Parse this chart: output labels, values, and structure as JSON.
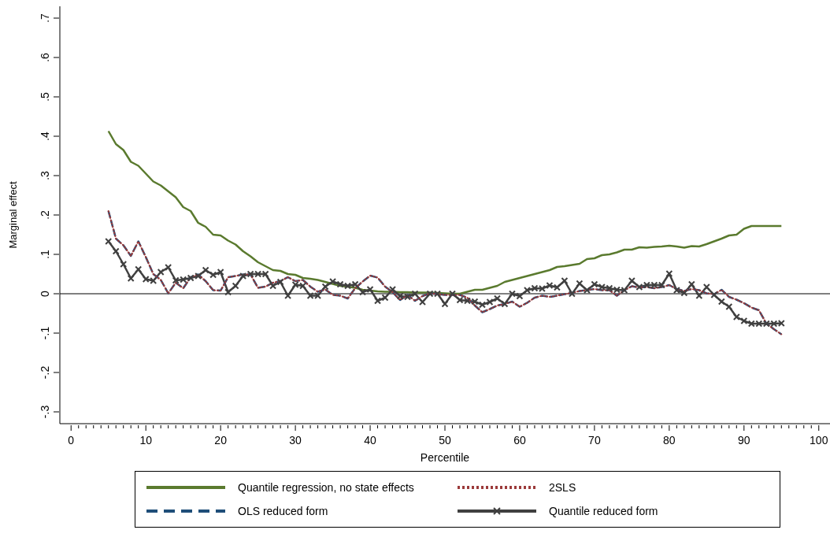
{
  "chart_data": {
    "type": "line",
    "xlabel": "Percentile",
    "ylabel": "Marginal effect",
    "x": [
      5,
      6,
      7,
      8,
      9,
      10,
      11,
      12,
      13,
      14,
      15,
      16,
      17,
      18,
      19,
      20,
      21,
      22,
      23,
      24,
      25,
      26,
      27,
      28,
      29,
      30,
      31,
      32,
      33,
      34,
      35,
      36,
      37,
      38,
      39,
      40,
      41,
      42,
      43,
      44,
      45,
      46,
      47,
      48,
      49,
      50,
      51,
      52,
      53,
      54,
      55,
      56,
      57,
      58,
      59,
      60,
      61,
      62,
      63,
      64,
      65,
      66,
      67,
      68,
      69,
      70,
      71,
      72,
      73,
      74,
      75,
      76,
      77,
      78,
      79,
      80,
      81,
      82,
      83,
      84,
      85,
      86,
      87,
      88,
      89,
      90,
      91,
      92,
      93,
      94,
      95
    ],
    "series": [
      {
        "name": "Quantile regression, no state effects",
        "color": "#5a7a2e",
        "line_style": "solid",
        "marker": "none",
        "values": [
          0.413,
          0.38,
          0.365,
          0.335,
          0.325,
          0.305,
          0.285,
          0.275,
          0.26,
          0.245,
          0.22,
          0.21,
          0.18,
          0.17,
          0.15,
          0.148,
          0.135,
          0.125,
          0.108,
          0.095,
          0.08,
          0.07,
          0.06,
          0.058,
          0.05,
          0.048,
          0.04,
          0.038,
          0.035,
          0.03,
          0.025,
          0.02,
          0.018,
          0.015,
          0.01,
          0.008,
          0.006,
          0.005,
          0.005,
          0.004,
          0.004,
          0.003,
          0.003,
          0.003,
          0.002,
          0.001,
          0,
          0,
          0.005,
          0.01,
          0.01,
          0.015,
          0.02,
          0.03,
          0.035,
          0.04,
          0.045,
          0.05,
          0.055,
          0.06,
          0.068,
          0.07,
          0.073,
          0.076,
          0.088,
          0.09,
          0.098,
          0.1,
          0.105,
          0.112,
          0.112,
          0.118,
          0.117,
          0.119,
          0.12,
          0.122,
          0.12,
          0.117,
          0.121,
          0.12,
          0.126,
          0.133,
          0.14,
          0.148,
          0.15,
          0.165,
          0.172,
          0.172,
          0.172,
          0.172,
          0.172
        ]
      },
      {
        "name": "2SLS",
        "color": "#9b3a3a",
        "line_style": "dotted",
        "marker": "none",
        "values": [
          0.21,
          0.14,
          0.123,
          0.096,
          0.133,
          0.093,
          0.05,
          0.035,
          0.001,
          0.028,
          0.014,
          0.042,
          0.049,
          0.032,
          0.009,
          0.008,
          0.042,
          0.045,
          0.049,
          0.049,
          0.015,
          0.018,
          0.028,
          0.032,
          0.042,
          0.032,
          0.035,
          0.018,
          0.005,
          0.011,
          -0.003,
          -0.005,
          -0.012,
          0.014,
          0.031,
          0.046,
          0.041,
          0.018,
          0.004,
          -0.016,
          -0.003,
          -0.018,
          -0.006,
          0.001,
          -0.001,
          -0.003,
          -0.003,
          -0.003,
          -0.01,
          -0.03,
          -0.047,
          -0.039,
          -0.03,
          -0.026,
          -0.02,
          -0.033,
          -0.023,
          -0.01,
          -0.005,
          -0.008,
          -0.005,
          -0.001,
          0.002,
          0.007,
          0.009,
          0.012,
          0.009,
          0.009,
          -0.005,
          0.009,
          0.019,
          0.016,
          0.017,
          0.014,
          0.017,
          0.022,
          0.012,
          0.007,
          0.012,
          0.009,
          0.001,
          -0.001,
          0.01,
          -0.008,
          -0.015,
          -0.024,
          -0.035,
          -0.042,
          -0.076,
          -0.09,
          -0.103
        ]
      },
      {
        "name": "OLS reduced form",
        "color": "#1f4e79",
        "line_style": "dashed",
        "marker": "none",
        "values": [
          0.21,
          0.14,
          0.123,
          0.096,
          0.133,
          0.093,
          0.05,
          0.035,
          0.001,
          0.028,
          0.014,
          0.042,
          0.049,
          0.032,
          0.009,
          0.008,
          0.042,
          0.045,
          0.049,
          0.049,
          0.015,
          0.018,
          0.028,
          0.032,
          0.042,
          0.032,
          0.035,
          0.018,
          0.005,
          0.011,
          -0.003,
          -0.005,
          -0.012,
          0.014,
          0.031,
          0.046,
          0.041,
          0.018,
          0.004,
          -0.016,
          -0.003,
          -0.018,
          -0.006,
          0.001,
          -0.001,
          -0.003,
          -0.003,
          -0.003,
          -0.01,
          -0.03,
          -0.047,
          -0.039,
          -0.03,
          -0.026,
          -0.02,
          -0.033,
          -0.023,
          -0.01,
          -0.005,
          -0.008,
          -0.005,
          -0.001,
          0.002,
          0.007,
          0.009,
          0.012,
          0.009,
          0.009,
          -0.005,
          0.009,
          0.019,
          0.016,
          0.017,
          0.014,
          0.017,
          0.022,
          0.012,
          0.007,
          0.012,
          0.009,
          0.001,
          -0.001,
          0.01,
          -0.008,
          -0.015,
          -0.024,
          -0.035,
          -0.042,
          -0.076,
          -0.09,
          -0.103
        ]
      },
      {
        "name": "Quantile reduced form",
        "color": "#404040",
        "line_style": "solid",
        "marker": "cross",
        "values": [
          0.133,
          0.108,
          0.075,
          0.039,
          0.062,
          0.037,
          0.033,
          0.055,
          0.067,
          0.034,
          0.036,
          0.04,
          0.045,
          0.06,
          0.048,
          0.055,
          0.004,
          0.02,
          0.045,
          0.05,
          0.05,
          0.05,
          0.02,
          0.03,
          -0.005,
          0.023,
          0.02,
          -0.005,
          -0.005,
          0.018,
          0.031,
          0.024,
          0.02,
          0.024,
          0.004,
          0.011,
          -0.018,
          -0.01,
          0.011,
          -0.006,
          -0.008,
          0,
          -0.021,
          0,
          0,
          -0.026,
          0,
          -0.016,
          -0.018,
          -0.02,
          -0.028,
          -0.021,
          -0.012,
          -0.026,
          0,
          -0.006,
          0.009,
          0.014,
          0.013,
          0.021,
          0.016,
          0.033,
          0,
          0.026,
          0.009,
          0.024,
          0.017,
          0.014,
          0.01,
          0.009,
          0.033,
          0.017,
          0.022,
          0.022,
          0.022,
          0.051,
          0.009,
          0.002,
          0.024,
          -0.005,
          0.017,
          -0.003,
          -0.02,
          -0.033,
          -0.059,
          -0.069,
          -0.076,
          -0.076,
          -0.076,
          -0.076,
          -0.075
        ]
      }
    ],
    "xlim": [
      -1.5,
      101.5
    ],
    "xticks": [
      0,
      {
        "value": 1,
        "label": null
      },
      {
        "value": 2,
        "label": null
      },
      {
        "value": 3,
        "label": null
      },
      {
        "value": 4,
        "label": null
      },
      {
        "value": 5,
        "label": null
      },
      {
        "value": 6,
        "label": null
      },
      {
        "value": 7,
        "label": null
      },
      {
        "value": 8,
        "label": null
      },
      {
        "value": 9,
        "label": null
      },
      10,
      {
        "value": 11,
        "label": null
      },
      {
        "value": 12,
        "label": null
      },
      {
        "value": 13,
        "label": null
      },
      {
        "value": 14,
        "label": null
      },
      {
        "value": 15,
        "label": null
      },
      {
        "value": 16,
        "label": null
      },
      {
        "value": 17,
        "label": null
      },
      {
        "value": 18,
        "label": null
      },
      {
        "value": 19,
        "label": null
      },
      20,
      {
        "value": 21,
        "label": null
      },
      {
        "value": 22,
        "label": null
      },
      {
        "value": 23,
        "label": null
      },
      {
        "value": 24,
        "label": null
      },
      {
        "value": 25,
        "label": null
      },
      {
        "value": 26,
        "label": null
      },
      {
        "value": 27,
        "label": null
      },
      {
        "value": 28,
        "label": null
      },
      {
        "value": 29,
        "label": null
      },
      30,
      {
        "value": 31,
        "label": null
      },
      {
        "value": 32,
        "label": null
      },
      {
        "value": 33,
        "label": null
      },
      {
        "value": 34,
        "label": null
      },
      {
        "value": 35,
        "label": null
      },
      {
        "value": 36,
        "label": null
      },
      {
        "value": 37,
        "label": null
      },
      {
        "value": 38,
        "label": null
      },
      {
        "value": 39,
        "label": null
      },
      40,
      {
        "value": 41,
        "label": null
      },
      {
        "value": 42,
        "label": null
      },
      {
        "value": 43,
        "label": null
      },
      {
        "value": 44,
        "label": null
      },
      {
        "value": 45,
        "label": null
      },
      {
        "value": 46,
        "label": null
      },
      {
        "value": 47,
        "label": null
      },
      {
        "value": 48,
        "label": null
      },
      {
        "value": 49,
        "label": null
      },
      50,
      {
        "value": 51,
        "label": null
      },
      {
        "value": 52,
        "label": null
      },
      {
        "value": 53,
        "label": null
      },
      {
        "value": 54,
        "label": null
      },
      {
        "value": 55,
        "label": null
      },
      {
        "value": 56,
        "label": null
      },
      {
        "value": 57,
        "label": null
      },
      {
        "value": 58,
        "label": null
      },
      {
        "value": 59,
        "label": null
      },
      60,
      {
        "value": 61,
        "label": null
      },
      {
        "value": 62,
        "label": null
      },
      {
        "value": 63,
        "label": null
      },
      {
        "value": 64,
        "label": null
      },
      {
        "value": 65,
        "label": null
      },
      {
        "value": 66,
        "label": null
      },
      {
        "value": 67,
        "label": null
      },
      {
        "value": 68,
        "label": null
      },
      {
        "value": 69,
        "label": null
      },
      70,
      {
        "value": 71,
        "label": null
      },
      {
        "value": 72,
        "label": null
      },
      {
        "value": 73,
        "label": null
      },
      {
        "value": 74,
        "label": null
      },
      {
        "value": 75,
        "label": null
      },
      {
        "value": 76,
        "label": null
      },
      {
        "value": 77,
        "label": null
      },
      {
        "value": 78,
        "label": null
      },
      {
        "value": 79,
        "label": null
      },
      80,
      {
        "value": 81,
        "label": null
      },
      {
        "value": 82,
        "label": null
      },
      {
        "value": 83,
        "label": null
      },
      {
        "value": 84,
        "label": null
      },
      {
        "value": 85,
        "label": null
      },
      {
        "value": 86,
        "label": null
      },
      {
        "value": 87,
        "label": null
      },
      {
        "value": 88,
        "label": null
      },
      {
        "value": 89,
        "label": null
      },
      90,
      {
        "value": 91,
        "label": null
      },
      {
        "value": 92,
        "label": null
      },
      {
        "value": 93,
        "label": null
      },
      {
        "value": 94,
        "label": null
      },
      {
        "value": 95,
        "label": null
      },
      {
        "value": 96,
        "label": null
      },
      {
        "value": 97,
        "label": null
      },
      {
        "value": 98,
        "label": null
      },
      {
        "value": 99,
        "label": null
      },
      100
    ],
    "ylim": [
      -0.33,
      0.73
    ],
    "yticks": [
      {
        "value": -0.3,
        "label": "-.3"
      },
      {
        "value": -0.2,
        "label": "-.2"
      },
      {
        "value": -0.1,
        "label": "-.1"
      },
      0,
      {
        "value": 0.1,
        "label": ".1"
      },
      {
        "value": 0.2,
        "label": ".2"
      },
      {
        "value": 0.3,
        "label": ".3"
      },
      {
        "value": 0.4,
        "label": ".4"
      },
      {
        "value": 0.5,
        "label": ".5"
      },
      {
        "value": 0.6,
        "label": ".6"
      },
      {
        "value": 0.7,
        "label": ".7"
      }
    ],
    "ref_lines": [
      {
        "axis": "y",
        "value": 0,
        "color": "#000000"
      }
    ],
    "grid": false,
    "legend": "bottom"
  }
}
